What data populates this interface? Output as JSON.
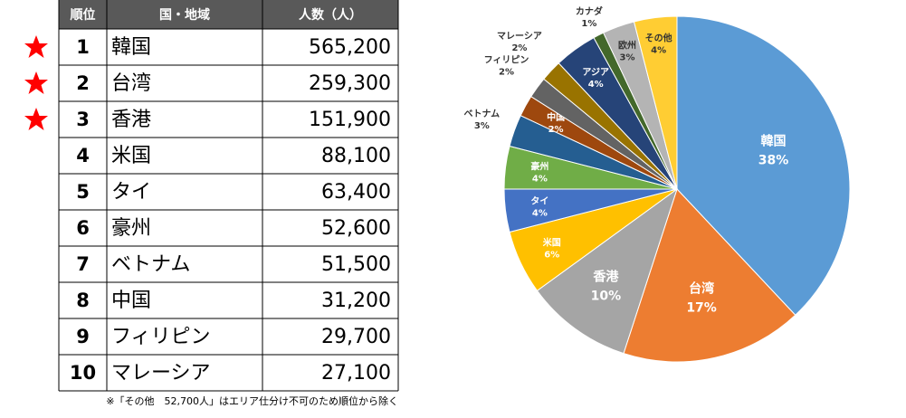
{
  "table": {
    "header": [
      "順位",
      "国・地域",
      "人数（人）"
    ],
    "rows": [
      [
        1,
        "韓国",
        "565,200"
      ],
      [
        2,
        "台湾",
        "259,300"
      ],
      [
        3,
        "香港",
        "151,900"
      ],
      [
        4,
        "米国",
        "88,100"
      ],
      [
        5,
        "タイ",
        "63,400"
      ],
      [
        6,
        "豪州",
        "52,600"
      ],
      [
        7,
        "ベトナム",
        "51,500"
      ],
      [
        8,
        "中国",
        "31,200"
      ],
      [
        9,
        "フィリピン",
        "29,700"
      ],
      [
        10,
        "マレーシア",
        "27,100"
      ]
    ],
    "note": "※「その他　52,700人」はエリア仕分け不可のため順位から除く"
  },
  "chart_data": {
    "type": "pie",
    "categories": [
      "韓国",
      "台湾",
      "香港",
      "米国",
      "タイ",
      "豪州",
      "ベトナム",
      "中国",
      "フィリピン",
      "マレーシア",
      "アジア",
      "カナダ",
      "欧州",
      "その他"
    ],
    "values": [
      38,
      17,
      10,
      6,
      4,
      4,
      3,
      2,
      2,
      2,
      4,
      1,
      3,
      4
    ],
    "value_labels": [
      "38%",
      "17%",
      "10%",
      "6%",
      "4%",
      "4%",
      "3%",
      "2%",
      "2%",
      "2%",
      "4%",
      "1%",
      "3%",
      "4%"
    ],
    "colors": [
      "#5b9bd5",
      "#ed7d31",
      "#a5a5a5",
      "#ffc000",
      "#4472c4",
      "#70ad47",
      "#255e91",
      "#9e480e",
      "#636363",
      "#997300",
      "#264478",
      "#43682b",
      "#b4b4b4",
      "#ffcd33"
    ]
  }
}
